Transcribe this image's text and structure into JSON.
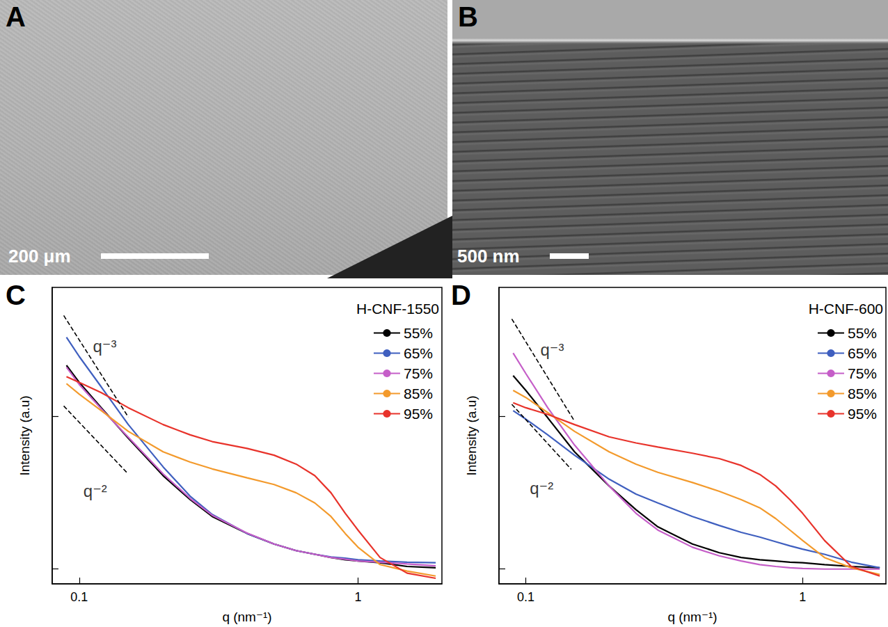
{
  "images": [
    {
      "panel": "A",
      "scale_bar": "200 μm"
    },
    {
      "panel": "B",
      "scale_bar": "500 nm"
    }
  ],
  "chart_data": [
    {
      "panel": "C",
      "type": "line",
      "log": true,
      "grid": false,
      "legend": "top-right",
      "tick_labels": "x",
      "legend_title": "H-CNF-1550",
      "x_label": "q (nm⁻¹)",
      "y_label": "Intensity (a.u)",
      "xlim": [
        0.08,
        2.0
      ],
      "xticks": [
        0.1,
        1
      ],
      "ylim": [
        0.8,
        70
      ],
      "yticks": [
        1,
        10
      ],
      "x": [
        0.09,
        0.1,
        0.12,
        0.15,
        0.2,
        0.25,
        0.3,
        0.4,
        0.5,
        0.6,
        0.7,
        0.8,
        0.9,
        1.0,
        1.2,
        1.5,
        1.9
      ],
      "series": [
        {
          "name": "55%",
          "color": "#000000",
          "values": [
            21.6,
            16.7,
            11.4,
            7.2,
            4.09,
            2.85,
            2.21,
            1.71,
            1.46,
            1.32,
            1.25,
            1.19,
            1.15,
            1.13,
            1.1,
            1.04,
            1.02
          ]
        },
        {
          "name": "65%",
          "color": "#3f5fbf",
          "values": [
            33.0,
            24.7,
            15.6,
            8.84,
            4.67,
            3.0,
            2.28,
            1.71,
            1.46,
            1.32,
            1.25,
            1.2,
            1.18,
            1.15,
            1.13,
            1.11,
            1.1
          ]
        },
        {
          "name": "75%",
          "color": "#c55ec8",
          "values": [
            21.0,
            16.2,
            11.2,
            7.3,
            4.2,
            2.9,
            2.25,
            1.72,
            1.46,
            1.32,
            1.25,
            1.19,
            1.16,
            1.13,
            1.11,
            1.08,
            1.05
          ]
        },
        {
          "name": "85%",
          "color": "#f39a2c",
          "values": [
            16.4,
            14.0,
            10.9,
            7.98,
            5.86,
            5.02,
            4.53,
            3.96,
            3.58,
            3.16,
            2.71,
            2.21,
            1.71,
            1.39,
            1.07,
            0.97,
            0.9
          ]
        },
        {
          "name": "95%",
          "color": "#e8332b",
          "values": [
            18.2,
            16.7,
            14.3,
            11.4,
            8.84,
            7.57,
            6.84,
            6.17,
            5.57,
            4.87,
            4.09,
            3.16,
            2.32,
            1.8,
            1.19,
            0.94,
            0.87
          ]
        }
      ],
      "annotations": [
        {
          "text": "q⁻³",
          "line_style": "dashed",
          "x": [
            0.088,
            0.15
          ],
          "y": [
            45.8,
            9.9
          ]
        },
        {
          "text": "q⁻²",
          "line_style": "dashed",
          "x": [
            0.088,
            0.148
          ],
          "y": [
            11.7,
            4.3
          ]
        }
      ]
    },
    {
      "panel": "D",
      "type": "line",
      "log": true,
      "grid": false,
      "legend": "top-right",
      "tick_labels": "x",
      "legend_title": "H-CNF-600",
      "x_label": "q (nm⁻¹)",
      "y_label": "Intensity (a.u)",
      "xlim": [
        0.08,
        2.0
      ],
      "xticks": [
        0.1,
        1
      ],
      "ylim": [
        0.8,
        70
      ],
      "yticks": [
        1,
        10
      ],
      "x": [
        0.09,
        0.1,
        0.12,
        0.15,
        0.2,
        0.25,
        0.3,
        0.4,
        0.5,
        0.6,
        0.7,
        0.8,
        0.9,
        1.0,
        1.2,
        1.5,
        1.9
      ],
      "series": [
        {
          "name": "55%",
          "color": "#000000",
          "values": [
            18.5,
            14.8,
            9.8,
            5.86,
            3.5,
            2.45,
            1.89,
            1.46,
            1.28,
            1.19,
            1.15,
            1.13,
            1.11,
            1.1,
            1.07,
            1.04,
            1.02
          ]
        },
        {
          "name": "65%",
          "color": "#3f5fbf",
          "values": [
            10.9,
            9.6,
            7.57,
            5.57,
            3.88,
            3.1,
            2.71,
            2.21,
            1.93,
            1.74,
            1.62,
            1.51,
            1.42,
            1.35,
            1.25,
            1.11,
            1.02
          ]
        },
        {
          "name": "75%",
          "color": "#c55ec8",
          "values": [
            26.0,
            19.1,
            11.4,
            6.49,
            3.5,
            2.32,
            1.8,
            1.39,
            1.22,
            1.13,
            1.07,
            1.04,
            1.02,
            1.01,
            1.0,
            1.0,
            1.0
          ]
        },
        {
          "name": "85%",
          "color": "#f39a2c",
          "values": [
            14.8,
            13.3,
            10.6,
            7.98,
            5.86,
            4.87,
            4.3,
            3.69,
            3.23,
            2.85,
            2.52,
            2.14,
            1.8,
            1.54,
            1.19,
            1.02,
            0.92
          ]
        },
        {
          "name": "95%",
          "color": "#e8332b",
          "values": [
            12.3,
            11.4,
            10.3,
            8.84,
            7.35,
            6.7,
            6.3,
            5.74,
            5.29,
            4.77,
            4.17,
            3.5,
            2.85,
            2.32,
            1.54,
            1.04,
            0.9
          ]
        }
      ],
      "annotations": [
        {
          "text": "q⁻³",
          "line_style": "dashed",
          "x": [
            0.089,
            0.15
          ],
          "y": [
            43.5,
            9.3
          ]
        },
        {
          "text": "q⁻²",
          "line_style": "dashed",
          "x": [
            0.089,
            0.146
          ],
          "y": [
            12.0,
            4.5
          ]
        }
      ]
    }
  ]
}
